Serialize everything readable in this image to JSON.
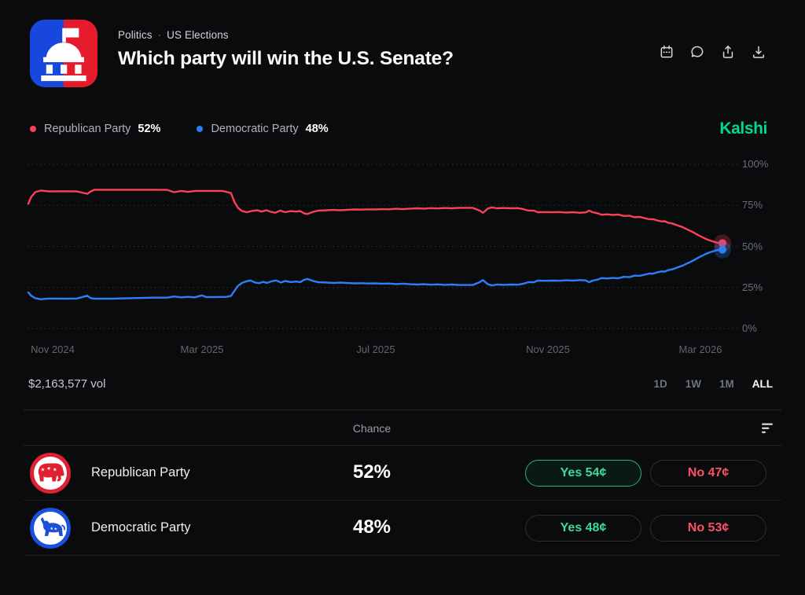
{
  "header": {
    "breadcrumb": {
      "category": "Politics",
      "separator": "·",
      "subcategory": "US Elections"
    },
    "title": "Which party will win the U.S. Senate?",
    "toolbar_icons": [
      "calendar-icon",
      "comment-icon",
      "share-icon",
      "download-icon"
    ]
  },
  "legend": {
    "items": [
      {
        "label": "Republican Party",
        "value": "52%",
        "color": "#fb4158"
      },
      {
        "label": "Democratic Party",
        "value": "48%",
        "color": "#2d7ff9"
      }
    ],
    "watermark": "Kalshi"
  },
  "chart_data": {
    "type": "line",
    "title": "Which party will win the U.S. Senate?",
    "x_ticks": [
      "Nov 2024",
      "Mar 2025",
      "Jul 2025",
      "Nov 2025",
      "Mar 2026"
    ],
    "y_ticks": [
      "100%",
      "75%",
      "50%",
      "25%",
      "0%"
    ],
    "ylim": [
      0,
      100
    ],
    "grid": "horizontal-dotted",
    "legend_position": "top-left",
    "series": [
      {
        "name": "Republican Party",
        "color": "#fb4158",
        "current_value": 52,
        "points": [
          [
            0,
            76
          ],
          [
            0.004,
            80
          ],
          [
            0.01,
            83
          ],
          [
            0.018,
            84
          ],
          [
            0.03,
            83.5
          ],
          [
            0.05,
            83.6
          ],
          [
            0.07,
            83.5
          ],
          [
            0.085,
            82
          ],
          [
            0.09,
            83.5
          ],
          [
            0.095,
            84.5
          ],
          [
            0.12,
            84.5
          ],
          [
            0.15,
            84.5
          ],
          [
            0.18,
            84.5
          ],
          [
            0.2,
            84.4
          ],
          [
            0.21,
            83
          ],
          [
            0.22,
            83.8
          ],
          [
            0.23,
            83.2
          ],
          [
            0.24,
            83.8
          ],
          [
            0.26,
            83.8
          ],
          [
            0.28,
            83.8
          ],
          [
            0.292,
            82.5
          ],
          [
            0.297,
            77
          ],
          [
            0.302,
            73.5
          ],
          [
            0.308,
            71.5
          ],
          [
            0.315,
            70.8
          ],
          [
            0.322,
            71.6
          ],
          [
            0.33,
            72
          ],
          [
            0.336,
            71.2
          ],
          [
            0.343,
            72
          ],
          [
            0.35,
            71
          ],
          [
            0.356,
            70.5
          ],
          [
            0.363,
            71.8
          ],
          [
            0.37,
            70.8
          ],
          [
            0.378,
            71.5
          ],
          [
            0.385,
            71.2
          ],
          [
            0.392,
            71.5
          ],
          [
            0.397,
            70.2
          ],
          [
            0.402,
            69.7
          ],
          [
            0.41,
            71
          ],
          [
            0.418,
            71.8
          ],
          [
            0.43,
            72
          ],
          [
            0.44,
            72.2
          ],
          [
            0.45,
            72
          ],
          [
            0.46,
            72.3
          ],
          [
            0.47,
            72.5
          ],
          [
            0.48,
            72.4
          ],
          [
            0.49,
            72.6
          ],
          [
            0.5,
            72.5
          ],
          [
            0.51,
            72.7
          ],
          [
            0.52,
            72.6
          ],
          [
            0.53,
            72.9
          ],
          [
            0.54,
            72.7
          ],
          [
            0.55,
            73
          ],
          [
            0.56,
            73.2
          ],
          [
            0.57,
            73
          ],
          [
            0.58,
            73.3
          ],
          [
            0.59,
            73.1
          ],
          [
            0.6,
            73.4
          ],
          [
            0.61,
            73.2
          ],
          [
            0.62,
            73.5
          ],
          [
            0.64,
            73.5
          ],
          [
            0.65,
            71.8
          ],
          [
            0.655,
            70.5
          ],
          [
            0.662,
            73
          ],
          [
            0.668,
            73.8
          ],
          [
            0.675,
            73.2
          ],
          [
            0.685,
            73.4
          ],
          [
            0.695,
            73.2
          ],
          [
            0.705,
            73.3
          ],
          [
            0.712,
            72.8
          ],
          [
            0.72,
            71.8
          ],
          [
            0.728,
            71.8
          ],
          [
            0.734,
            70.8
          ],
          [
            0.745,
            70.9
          ],
          [
            0.755,
            70.8
          ],
          [
            0.765,
            70.9
          ],
          [
            0.775,
            70.6
          ],
          [
            0.785,
            70.8
          ],
          [
            0.795,
            70.5
          ],
          [
            0.803,
            70.7
          ],
          [
            0.808,
            71.8
          ],
          [
            0.813,
            70.8
          ],
          [
            0.82,
            70.2
          ],
          [
            0.826,
            69.3
          ],
          [
            0.834,
            69.5
          ],
          [
            0.842,
            69.2
          ],
          [
            0.85,
            69.4
          ],
          [
            0.858,
            68.5
          ],
          [
            0.866,
            68.7
          ],
          [
            0.873,
            67.8
          ],
          [
            0.881,
            67.9
          ],
          [
            0.888,
            67.2
          ],
          [
            0.895,
            66.5
          ],
          [
            0.9,
            66.6
          ],
          [
            0.906,
            65.8
          ],
          [
            0.912,
            65.2
          ],
          [
            0.917,
            65.3
          ],
          [
            0.922,
            64.4
          ],
          [
            0.927,
            64
          ],
          [
            0.932,
            63.3
          ],
          [
            0.937,
            62.5
          ],
          [
            0.942,
            61.8
          ],
          [
            0.947,
            60.8
          ],
          [
            0.952,
            59.8
          ],
          [
            0.957,
            58.8
          ],
          [
            0.962,
            57.6
          ],
          [
            0.967,
            56.4
          ],
          [
            0.972,
            55.4
          ],
          [
            0.977,
            54.4
          ],
          [
            0.982,
            53.6
          ],
          [
            0.987,
            52.9
          ],
          [
            0.992,
            52.3
          ],
          [
            1,
            52
          ]
        ]
      },
      {
        "name": "Democratic Party",
        "color": "#2d7ff9",
        "current_value": 48,
        "points": [
          [
            0,
            22
          ],
          [
            0.004,
            20
          ],
          [
            0.01,
            18.5
          ],
          [
            0.018,
            17.8
          ],
          [
            0.03,
            18.3
          ],
          [
            0.05,
            18.2
          ],
          [
            0.07,
            18.3
          ],
          [
            0.085,
            20
          ],
          [
            0.09,
            18.5
          ],
          [
            0.095,
            18.2
          ],
          [
            0.12,
            18.2
          ],
          [
            0.15,
            18.5
          ],
          [
            0.18,
            18.8
          ],
          [
            0.2,
            18.8
          ],
          [
            0.21,
            19.5
          ],
          [
            0.22,
            19
          ],
          [
            0.23,
            19.3
          ],
          [
            0.24,
            19
          ],
          [
            0.25,
            20.2
          ],
          [
            0.256,
            19.2
          ],
          [
            0.27,
            19.2
          ],
          [
            0.285,
            19.3
          ],
          [
            0.292,
            19.8
          ],
          [
            0.297,
            23
          ],
          [
            0.302,
            26
          ],
          [
            0.308,
            27.8
          ],
          [
            0.315,
            28.8
          ],
          [
            0.32,
            29.3
          ],
          [
            0.327,
            28
          ],
          [
            0.333,
            27.6
          ],
          [
            0.338,
            28.4
          ],
          [
            0.344,
            27.8
          ],
          [
            0.351,
            28.8
          ],
          [
            0.357,
            29.3
          ],
          [
            0.364,
            28
          ],
          [
            0.37,
            29
          ],
          [
            0.378,
            28.3
          ],
          [
            0.385,
            28.6
          ],
          [
            0.392,
            28.3
          ],
          [
            0.397,
            29.6
          ],
          [
            0.402,
            30.2
          ],
          [
            0.41,
            29
          ],
          [
            0.418,
            28.2
          ],
          [
            0.43,
            28
          ],
          [
            0.44,
            27.8
          ],
          [
            0.45,
            28
          ],
          [
            0.46,
            27.7
          ],
          [
            0.47,
            27.5
          ],
          [
            0.48,
            27.6
          ],
          [
            0.49,
            27.4
          ],
          [
            0.5,
            27.5
          ],
          [
            0.51,
            27.3
          ],
          [
            0.52,
            27.4
          ],
          [
            0.53,
            27.1
          ],
          [
            0.54,
            27.3
          ],
          [
            0.55,
            27
          ],
          [
            0.56,
            26.8
          ],
          [
            0.57,
            27
          ],
          [
            0.58,
            26.7
          ],
          [
            0.59,
            26.9
          ],
          [
            0.6,
            26.6
          ],
          [
            0.61,
            26.8
          ],
          [
            0.62,
            26.5
          ],
          [
            0.64,
            26.5
          ],
          [
            0.65,
            28.2
          ],
          [
            0.655,
            29.5
          ],
          [
            0.662,
            27
          ],
          [
            0.668,
            26.2
          ],
          [
            0.675,
            26.8
          ],
          [
            0.685,
            26.6
          ],
          [
            0.695,
            26.8
          ],
          [
            0.705,
            26.7
          ],
          [
            0.712,
            27.2
          ],
          [
            0.72,
            28.2
          ],
          [
            0.728,
            28.2
          ],
          [
            0.734,
            29.2
          ],
          [
            0.745,
            29.1
          ],
          [
            0.755,
            29.2
          ],
          [
            0.765,
            29.1
          ],
          [
            0.775,
            29.4
          ],
          [
            0.785,
            29.2
          ],
          [
            0.795,
            29.5
          ],
          [
            0.803,
            29.3
          ],
          [
            0.808,
            28.2
          ],
          [
            0.813,
            29.2
          ],
          [
            0.82,
            29.8
          ],
          [
            0.826,
            30.7
          ],
          [
            0.834,
            30.5
          ],
          [
            0.842,
            30.8
          ],
          [
            0.85,
            30.6
          ],
          [
            0.858,
            31.5
          ],
          [
            0.866,
            31.3
          ],
          [
            0.873,
            32.2
          ],
          [
            0.881,
            32.1
          ],
          [
            0.888,
            32.8
          ],
          [
            0.895,
            33.5
          ],
          [
            0.9,
            33.4
          ],
          [
            0.906,
            34.2
          ],
          [
            0.912,
            34.8
          ],
          [
            0.917,
            34.7
          ],
          [
            0.922,
            35.6
          ],
          [
            0.927,
            36
          ],
          [
            0.932,
            36.7
          ],
          [
            0.937,
            37.5
          ],
          [
            0.942,
            38.2
          ],
          [
            0.947,
            39.2
          ],
          [
            0.952,
            40.2
          ],
          [
            0.957,
            41.2
          ],
          [
            0.962,
            42.4
          ],
          [
            0.967,
            43.6
          ],
          [
            0.972,
            44.6
          ],
          [
            0.977,
            45.6
          ],
          [
            0.982,
            46.4
          ],
          [
            0.987,
            47.1
          ],
          [
            0.992,
            47.7
          ],
          [
            1,
            48
          ]
        ]
      }
    ]
  },
  "footer": {
    "volume": "$2,163,577 vol",
    "ranges": [
      {
        "label": "1D",
        "active": false
      },
      {
        "label": "1W",
        "active": false
      },
      {
        "label": "1M",
        "active": false
      },
      {
        "label": "ALL",
        "active": true
      }
    ]
  },
  "table": {
    "chance_header": "Chance",
    "sort_icon": "sort-icon",
    "rows": [
      {
        "icon": "republican-elephant-icon",
        "name": "Republican Party",
        "chance": "52%",
        "yes": "Yes 54¢",
        "no": "No 47¢",
        "yes_highlighted": true
      },
      {
        "icon": "democratic-donkey-icon",
        "name": "Democratic Party",
        "chance": "48%",
        "yes": "Yes 48¢",
        "no": "No 53¢",
        "yes_highlighted": false
      }
    ]
  },
  "colors": {
    "background": "#0a0b0d",
    "republican": "#fb4158",
    "democratic": "#2d7ff9",
    "kalshi_green": "#00d991",
    "yes_text": "#3fd998",
    "no_text": "#fc4f68",
    "logo_blue": "#1747dd",
    "logo_red": "#e51a2b"
  }
}
